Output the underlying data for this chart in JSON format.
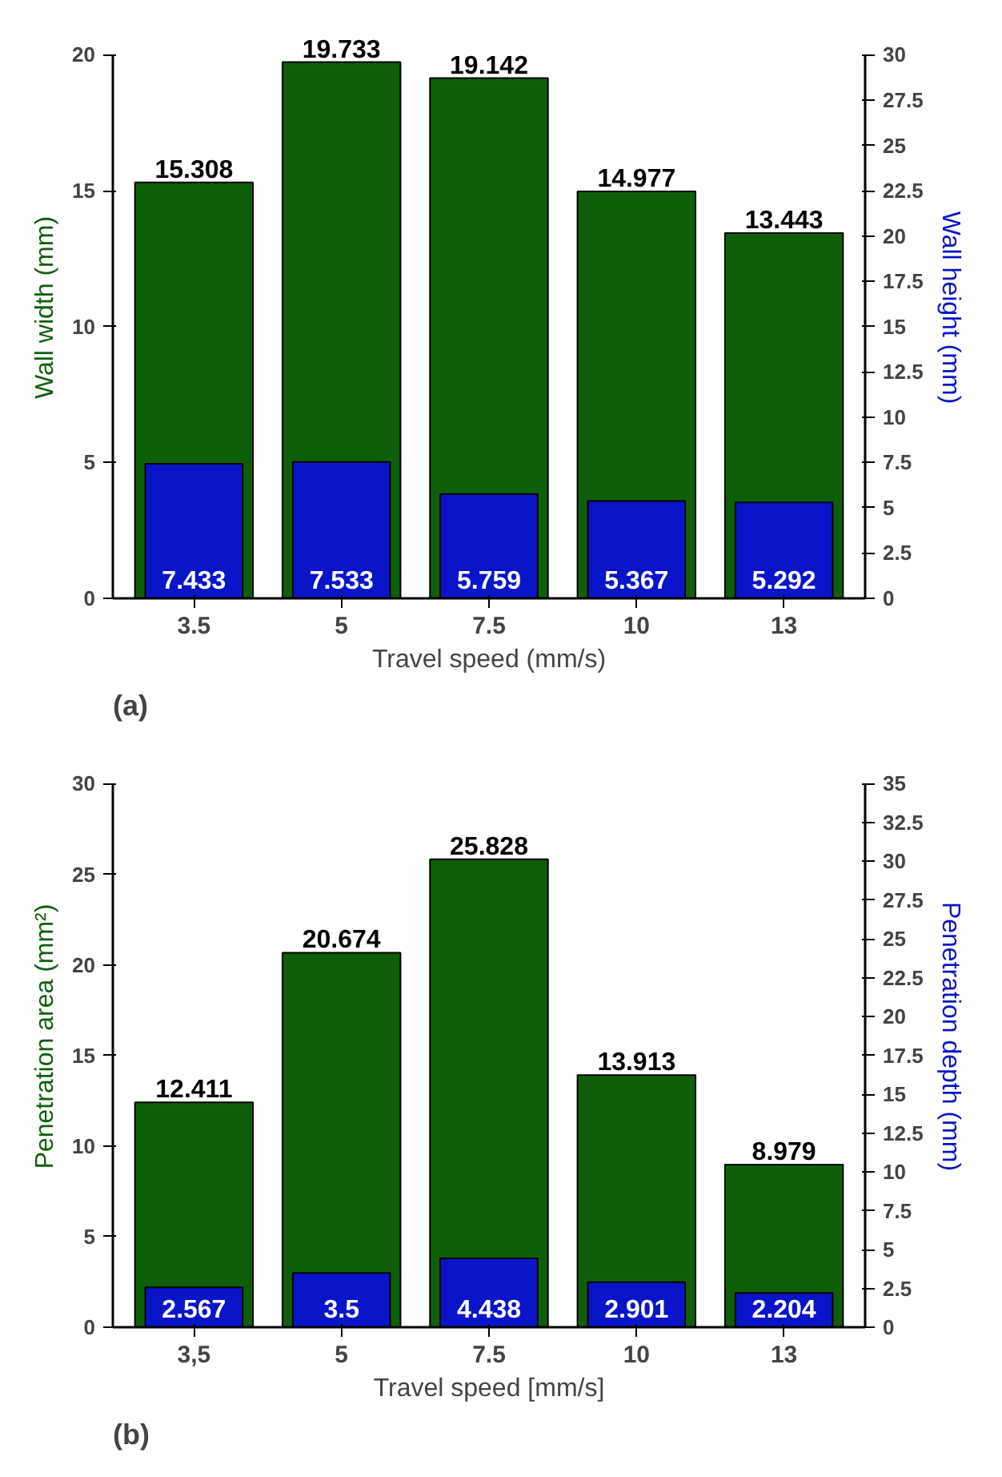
{
  "chart_data": [
    {
      "type": "bar",
      "categories": [
        "3.5",
        "5",
        "7.5",
        "10",
        "13"
      ],
      "xlabel": "Travel speed (mm/s)",
      "ylabel": "Wall width (mm)",
      "y2label": "Wall height (mm)",
      "ylim": [
        0,
        20
      ],
      "yticks": [
        0,
        5,
        10,
        15,
        20
      ],
      "y2lim": [
        0,
        30
      ],
      "y2ticks": [
        0,
        2.5,
        5,
        7.5,
        10,
        12.5,
        15,
        17.5,
        20,
        22.5,
        25,
        27.5,
        30
      ],
      "data_labels": true,
      "grid": false,
      "annotations": [
        "(a)"
      ],
      "series": [
        {
          "color": "#0f5f0a",
          "values": [
            15.308,
            19.733,
            19.142,
            14.977,
            13.443
          ]
        },
        {
          "color": "#0a14c8",
          "axis": "y2",
          "values": [
            7.433,
            7.533,
            5.759,
            5.367,
            5.292
          ]
        }
      ]
    },
    {
      "type": "bar",
      "categories": [
        "3,5",
        "5",
        "7.5",
        "10",
        "13"
      ],
      "xlabel": "Travel speed [mm/s]",
      "ylabel": "Penetration area (mm²)",
      "y2label": "Penetration depth (mm)",
      "ylim": [
        0,
        30
      ],
      "yticks": [
        0,
        5,
        10,
        15,
        20,
        25,
        30
      ],
      "y2lim": [
        0,
        35
      ],
      "y2ticks": [
        0,
        2.5,
        5,
        7.5,
        10,
        12.5,
        15,
        17.5,
        20,
        22.5,
        25,
        27.5,
        30,
        32.5,
        35
      ],
      "data_labels": true,
      "grid": false,
      "annotations": [
        "(b)"
      ],
      "series": [
        {
          "color": "#0f5f0a",
          "values": [
            12.411,
            20.674,
            25.828,
            13.913,
            8.979
          ]
        },
        {
          "color": "#0a14c8",
          "axis": "y2",
          "values": [
            2.567,
            3.5,
            4.438,
            2.901,
            2.204
          ]
        }
      ]
    }
  ]
}
